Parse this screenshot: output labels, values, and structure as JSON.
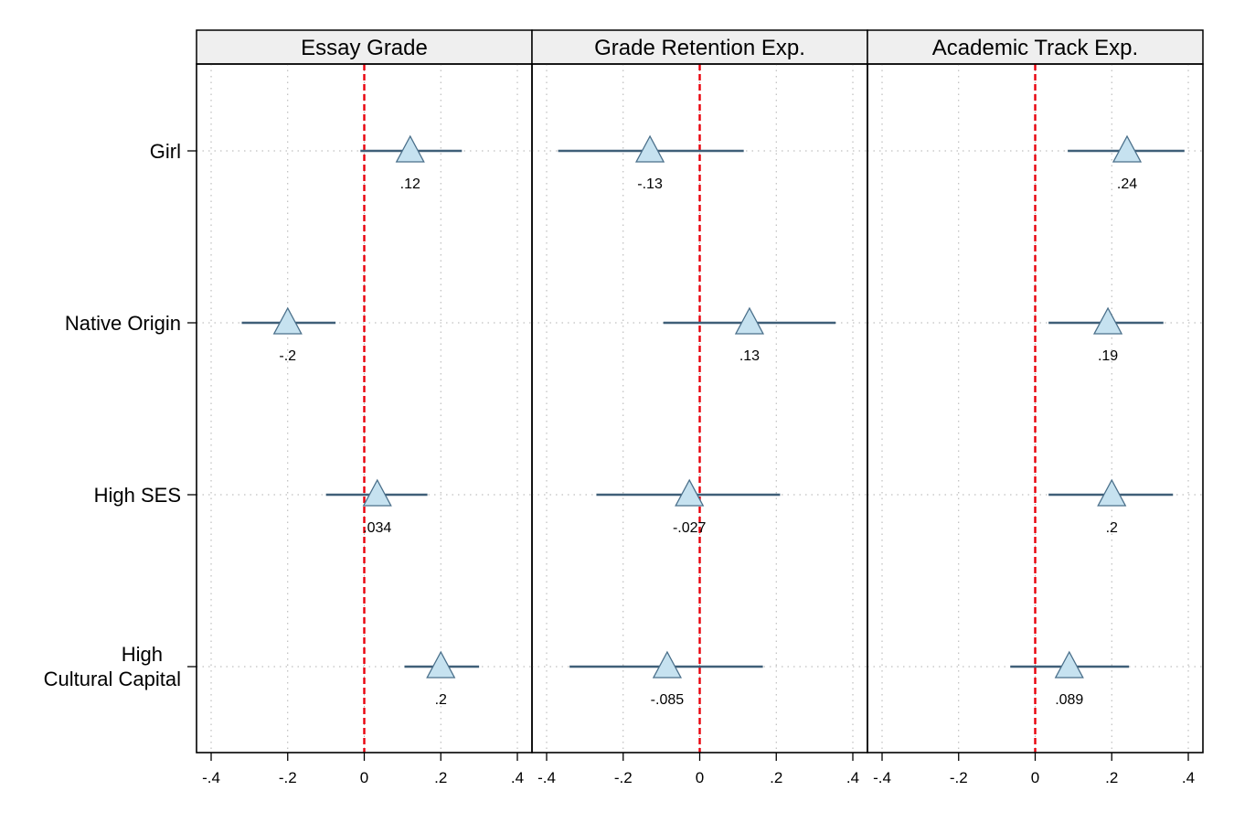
{
  "chart_data": {
    "type": "scatter",
    "subtype": "coefficient-plot",
    "categories": [
      "Girl",
      "Native Origin",
      "High SES",
      "High Cultural Capital"
    ],
    "category_label_lines": [
      [
        "Girl"
      ],
      [
        "Native Origin"
      ],
      [
        "High SES"
      ],
      [
        "High",
        "Cultural Capital"
      ]
    ],
    "xlim": [
      -0.4,
      0.4
    ],
    "x_ticks": [
      -0.4,
      -0.2,
      0,
      0.2,
      0.4
    ],
    "x_tick_labels": [
      "-.4",
      "-.2",
      "0",
      ".2",
      ".4"
    ],
    "reference_line": 0,
    "grid": true,
    "marker": "triangle",
    "colors": {
      "marker_fill": "#c6e2f0",
      "marker_stroke": "#4a6f8a",
      "ci_line": "#3f5f78",
      "reference_line": "#e8000b",
      "header_fill": "#efefef",
      "grid": "#b0b0b0"
    },
    "panels": [
      {
        "title": "Essay Grade",
        "estimates": [
          0.12,
          -0.2,
          0.034,
          0.2
        ],
        "labels": [
          ".12",
          "-.2",
          ".034",
          ".2"
        ],
        "ci_low": [
          -0.01,
          -0.32,
          -0.1,
          0.105
        ],
        "ci_high": [
          0.255,
          -0.075,
          0.165,
          0.3
        ]
      },
      {
        "title": "Grade Retention Exp.",
        "estimates": [
          -0.13,
          0.13,
          -0.027,
          -0.085
        ],
        "labels": [
          "-.13",
          ".13",
          "-.027",
          "-.085"
        ],
        "ci_low": [
          -0.37,
          -0.095,
          -0.27,
          -0.34
        ],
        "ci_high": [
          0.115,
          0.355,
          0.21,
          0.165
        ]
      },
      {
        "title": "Academic Track Exp.",
        "estimates": [
          0.24,
          0.19,
          0.2,
          0.089
        ],
        "labels": [
          ".24",
          ".19",
          ".2",
          ".089"
        ],
        "ci_low": [
          0.085,
          0.035,
          0.035,
          -0.065
        ],
        "ci_high": [
          0.39,
          0.335,
          0.36,
          0.245
        ]
      }
    ]
  }
}
